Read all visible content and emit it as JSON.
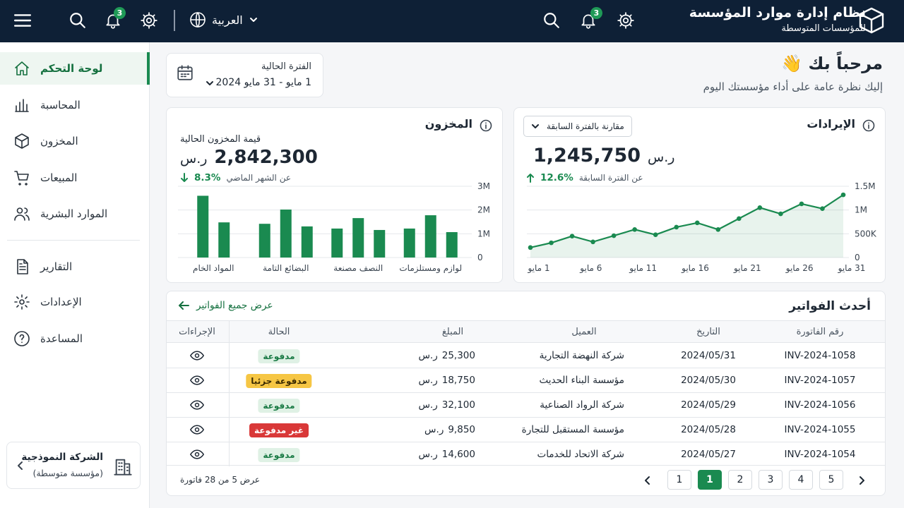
{
  "header": {
    "app_title": "نظام إدارة موارد المؤسسة",
    "app_subtitle": "للمؤسسات المتوسطة",
    "notifications": "3",
    "language": "العربية",
    "left_notifications": "3"
  },
  "sidebar": {
    "items": [
      "لوحة التحكم",
      "المحاسبة",
      "المخزون",
      "المبيعات",
      "الموارد البشرية",
      "التقارير",
      "الإعدادات",
      "المساعدة"
    ],
    "active": 0,
    "company": {
      "name": "الشركة النموذجية",
      "type": "(مؤسسة متوسطة)"
    }
  },
  "welcome": {
    "title": "مرحباً بك 👋",
    "subtitle": "إليك نظرة عامة على أداء مؤسستك اليوم"
  },
  "period": {
    "label": "الفترة الحالية",
    "range": "1 مايو - 31 مايو 2024"
  },
  "revenue": {
    "title": "الإيرادات",
    "compare": "مقارنة بالفترة السابقة",
    "currency": "ر.س",
    "total": "1,245,750",
    "change": "12.6%",
    "change_note": "عن الفترة السابقة",
    "chart": {
      "type": "line",
      "color": "#1a8a50",
      "grid": true,
      "x": [
        1,
        3,
        5,
        7,
        9,
        11,
        13,
        15,
        17,
        19,
        21,
        23,
        25,
        27,
        29,
        31
      ],
      "values": [
        210000,
        310000,
        450000,
        330000,
        460000,
        590000,
        480000,
        640000,
        730000,
        590000,
        820000,
        1050000,
        920000,
        1130000,
        1030000,
        1320000
      ],
      "xlim": [
        1,
        31
      ],
      "ylim": [
        0,
        1500000
      ],
      "xticks": [
        {
          "value": 1,
          "label": "1 مايو"
        },
        {
          "value": 6,
          "label": "6 مايو"
        },
        {
          "value": 11,
          "label": "11 مايو"
        },
        {
          "value": 16,
          "label": "16 مايو"
        },
        {
          "value": 21,
          "label": "21 مايو"
        },
        {
          "value": 26,
          "label": "26 مايو"
        },
        {
          "value": 31,
          "label": "31 مايو"
        }
      ],
      "yticks": [
        0,
        {
          "value": 500000,
          "label": "500K"
        },
        {
          "value": 1000000,
          "label": "1M"
        },
        {
          "value": 1500000,
          "label": "1.5M"
        }
      ]
    }
  },
  "inventory": {
    "title": "المخزون",
    "value_label": "قيمة المخزون الحالية",
    "currency": "ر.س",
    "total": "2,842,300",
    "change": "8.3%",
    "change_note": "عن الشهر الماضي",
    "chart": {
      "type": "bar",
      "grid": true,
      "categories": [
        "المواد الخام",
        "البضائع التامة",
        "النصف مصنعة",
        "لوازم ومستلزمات"
      ],
      "series": [
        {
          "color": "#1a8a50",
          "values": [
            2600000,
            1420000,
            1220000,
            1220000
          ]
        },
        {
          "color": "#1a8a50",
          "values": [
            1480000,
            2020000,
            1660000,
            1780000
          ]
        },
        {
          "color": "#1a8a50",
          "values": [
            null,
            1310000,
            1160000,
            1070000
          ]
        }
      ],
      "ylim": [
        0,
        3000000
      ],
      "yticks": [
        0,
        {
          "value": 1000000,
          "label": "1M"
        },
        {
          "value": 2000000,
          "label": "2M"
        },
        {
          "value": 3000000,
          "label": "3M"
        }
      ]
    }
  },
  "invoices": {
    "title": "أحدث الفواتير",
    "view_all": "عرض جميع الفواتير",
    "currency": "ر.س",
    "columns": [
      "رقم الفاتورة",
      "التاريخ",
      "العميل",
      "المبلغ",
      "الحالة",
      "الإجراءات"
    ],
    "rows": [
      {
        "id": "INV-2024-1058",
        "date": "2024/05/31",
        "client": "شركة النهضة التجارية",
        "amount": "25,300",
        "status": "مدفوعة",
        "status_color": "#dff1e5"
      },
      {
        "id": "INV-2024-1057",
        "date": "2024/05/30",
        "client": "مؤسسة البناء الحديث",
        "amount": "18,750",
        "status": "مدفوعة جزئيا",
        "status_color": "#f6c644"
      },
      {
        "id": "INV-2024-1056",
        "date": "2024/05/29",
        "client": "شركة الرواد الصناعية",
        "amount": "32,100",
        "status": "مدفوعة",
        "status_color": "#dff1e5"
      },
      {
        "id": "INV-2024-1055",
        "date": "2024/05/28",
        "client": "مؤسسة المستقبل للتجارة",
        "amount": "9,850",
        "status": "غير مدفوعة",
        "status_color": "#d93838"
      },
      {
        "id": "INV-2024-1054",
        "date": "2024/05/27",
        "client": "شركة الاتحاد للخدمات",
        "amount": "14,600",
        "status": "مدفوعة",
        "status_color": "#dff1e5"
      }
    ],
    "summary": "عرض 5 من 28 فاتورة",
    "pages": [
      "1",
      "1",
      "2",
      "3",
      "4",
      "5"
    ],
    "active_page": 1
  }
}
